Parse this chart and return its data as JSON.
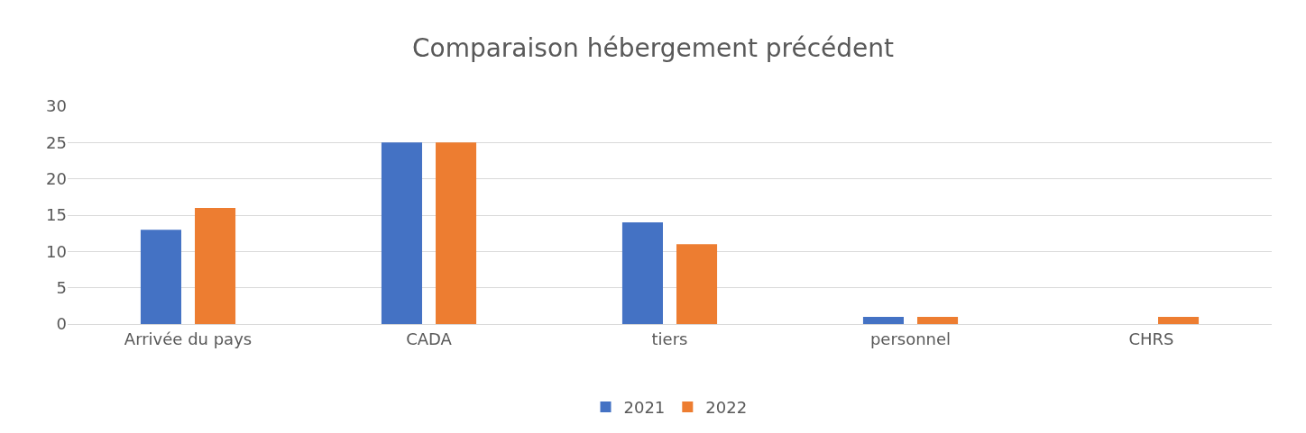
{
  "chart_data": {
    "type": "bar",
    "title": "Comparaison hébergement précédent",
    "categories": [
      "Arrivée du pays",
      "CADA",
      "tiers",
      "personnel",
      "CHRS"
    ],
    "series": [
      {
        "name": "2021",
        "color": "#4472c4",
        "values": [
          13,
          25,
          14,
          1,
          0
        ]
      },
      {
        "name": "2022",
        "color": "#ed7d31",
        "values": [
          16,
          25,
          11,
          1,
          1
        ]
      }
    ],
    "ylim": [
      0,
      30
    ],
    "yticks": [
      0,
      5,
      10,
      15,
      20,
      25,
      30
    ],
    "grid": "y",
    "legend": "bottom"
  }
}
